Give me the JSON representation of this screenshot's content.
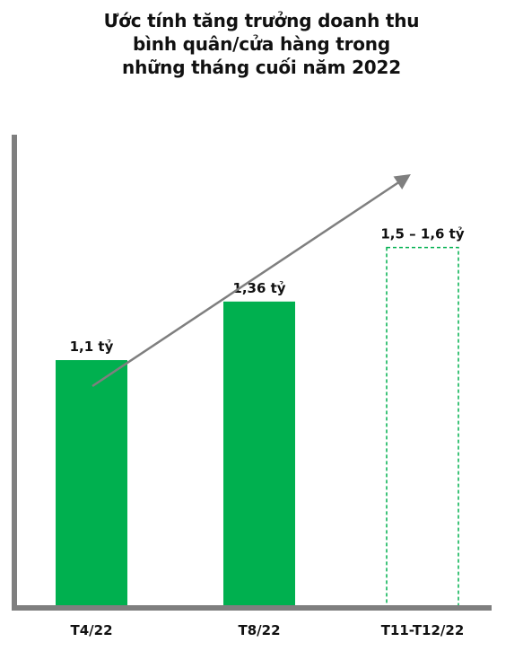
{
  "title_lines": [
    "Ước tính tăng trưởng doanh thu",
    "bình quân/cửa hàng trong",
    "những tháng cuối năm 2022"
  ],
  "colors": {
    "bar": "#00b04f",
    "bar_dashed_outline": "#00b04f",
    "axis": "#7f7f7f",
    "trend_arrow": "#7f7f7f"
  },
  "chart_data": {
    "type": "bar",
    "title": "Ước tính tăng trưởng doanh thu bình quân/cửa hàng trong những tháng cuối năm 2022",
    "categories": [
      "T4/22",
      "T8/22",
      "T11-T12/22"
    ],
    "values": [
      1.1,
      1.36,
      1.6
    ],
    "value_labels": [
      "1,1 tỷ",
      "1,36 tỷ",
      "1,5 – 1,6 tỷ"
    ],
    "estimated": [
      false,
      false,
      true
    ],
    "xlabel": "",
    "ylabel": "",
    "ylim": [
      0,
      2.3
    ],
    "grid": false,
    "legend": "none",
    "trend_arrow": true
  }
}
